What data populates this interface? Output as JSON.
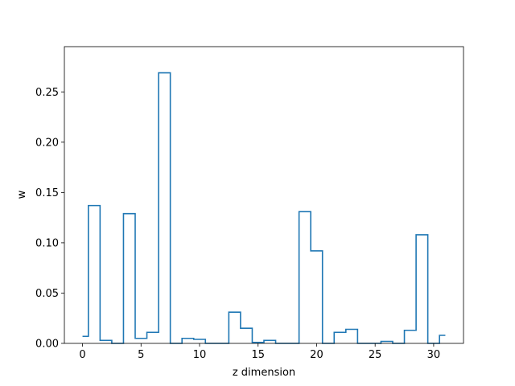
{
  "chart_data": {
    "type": "line",
    "drawstyle": "steps-mid",
    "xlabel": "z dimension",
    "ylabel": "w",
    "xlim": [
      -1.55,
      32.55
    ],
    "ylim": [
      0,
      0.295
    ],
    "xticks": [
      0,
      5,
      10,
      15,
      20,
      25,
      30
    ],
    "xtick_labels": [
      "0",
      "5",
      "10",
      "15",
      "20",
      "25",
      "30"
    ],
    "yticks": [
      0,
      0.05,
      0.1,
      0.15,
      0.2,
      0.25
    ],
    "ytick_labels": [
      "0.00",
      "0.05",
      "0.10",
      "0.15",
      "0.20",
      "0.25"
    ],
    "grid": false,
    "line_color": "#1f77b4",
    "series": [
      {
        "x": [
          0,
          1,
          2,
          3,
          4,
          5,
          6,
          7,
          8,
          9,
          10,
          11,
          12,
          13,
          14,
          15,
          16,
          17,
          18,
          19,
          20,
          21,
          22,
          23,
          24,
          25,
          26,
          27,
          28,
          29,
          30,
          31
        ],
        "values": [
          0.007,
          0.137,
          0.003,
          0.0,
          0.129,
          0.005,
          0.011,
          0.269,
          0.0,
          0.005,
          0.004,
          0.0,
          0.0,
          0.031,
          0.015,
          0.001,
          0.003,
          0.0,
          0.0,
          0.131,
          0.092,
          0.0,
          0.011,
          0.014,
          0.0,
          0.0,
          0.002,
          0.0,
          0.013,
          0.108,
          0.0,
          0.008
        ]
      }
    ]
  }
}
